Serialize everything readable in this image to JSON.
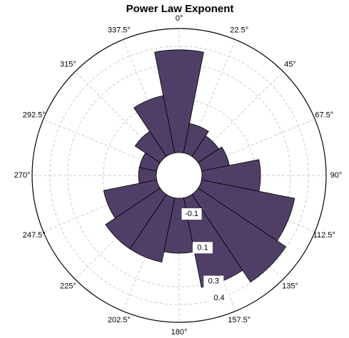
{
  "chart_data": {
    "type": "polar_bar",
    "title": "Power Law Exponent",
    "color": "#4f3f66",
    "categories": [
      {
        "value": 0,
        "label": "0°"
      },
      {
        "value": 22.5,
        "label": "22.5°"
      },
      {
        "value": 45,
        "label": "45°"
      },
      {
        "value": 67.5,
        "label": "67.5°"
      },
      {
        "value": 90,
        "label": "90°"
      },
      {
        "value": 112.5,
        "label": "112.5°"
      },
      {
        "value": 135,
        "label": "135°"
      },
      {
        "value": 157.5,
        "label": "157.5°"
      },
      {
        "value": 180,
        "label": "180°"
      },
      {
        "value": 202.5,
        "label": "202.5°"
      },
      {
        "value": 225,
        "label": "225°"
      },
      {
        "value": 247.5,
        "label": "247.5°"
      },
      {
        "value": 270,
        "label": "270°"
      },
      {
        "value": 292.5,
        "label": "292.5°"
      },
      {
        "value": 315,
        "label": "315°"
      },
      {
        "value": 337.5,
        "label": "337.5°"
      }
    ],
    "values": [
      0.38,
      -0.03,
      -0.06,
      -0.04,
      0.13,
      0.335,
      0.395,
      0.315,
      0.11,
      0.17,
      0.17,
      0.105,
      -0.1,
      -0.1,
      -0.03,
      0.13
    ],
    "rlim": [
      -0.2,
      0.5
    ],
    "rticks": [
      -0.1,
      0.1,
      0.3,
      0.4
    ],
    "grid": true
  }
}
